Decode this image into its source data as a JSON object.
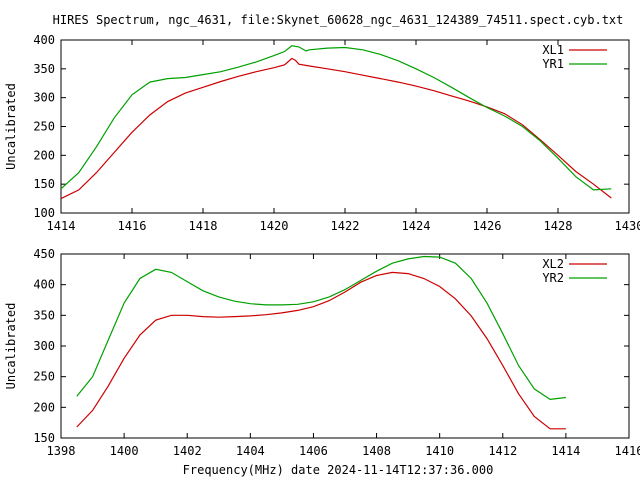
{
  "title": "HIRES Spectrum, ngc_4631, file:Skynet_60628_ngc_4631_124389_74511.spect.cyb.txt",
  "xlabel": "Frequency(MHz) date 2024-11-14T12:37:36.000",
  "colors": {
    "red": "#cc0000",
    "green": "#00a000"
  },
  "chart_data": [
    {
      "type": "line",
      "ylabel": "Uncalibrated",
      "xlim": [
        1414,
        1430
      ],
      "ylim": [
        100,
        400
      ],
      "xticks": [
        "1414",
        "1416",
        "1418",
        "1420",
        "1422",
        "1424",
        "1426",
        "1428",
        "1430"
      ],
      "yticks": [
        "100",
        "150",
        "200",
        "250",
        "300",
        "350",
        "400"
      ],
      "legend": "top-right",
      "series": [
        {
          "name": "XL1",
          "color": "#cc0000",
          "x": [
            1414.0,
            1414.5,
            1415.0,
            1415.5,
            1416.0,
            1416.5,
            1417.0,
            1417.5,
            1418.0,
            1418.5,
            1419.0,
            1419.5,
            1420.0,
            1420.3,
            1420.5,
            1420.6,
            1420.7,
            1421.0,
            1421.5,
            1422.0,
            1422.5,
            1423.0,
            1423.5,
            1424.0,
            1424.5,
            1425.0,
            1425.5,
            1426.0,
            1426.5,
            1427.0,
            1427.5,
            1428.0,
            1428.5,
            1429.0,
            1429.5
          ],
          "y": [
            125,
            140,
            170,
            205,
            240,
            270,
            293,
            308,
            318,
            328,
            337,
            345,
            352,
            357,
            368,
            365,
            358,
            355,
            350,
            345,
            339,
            333,
            327,
            320,
            312,
            303,
            294,
            284,
            272,
            253,
            227,
            200,
            172,
            150,
            126
          ]
        },
        {
          "name": "YR1",
          "color": "#00a000",
          "x": [
            1414.0,
            1414.5,
            1415.0,
            1415.5,
            1416.0,
            1416.5,
            1417.0,
            1417.5,
            1418.0,
            1418.5,
            1419.0,
            1419.5,
            1420.0,
            1420.3,
            1420.5,
            1420.7,
            1420.9,
            1421.0,
            1421.5,
            1422.0,
            1422.5,
            1423.0,
            1423.5,
            1424.0,
            1424.5,
            1425.0,
            1425.5,
            1426.0,
            1426.5,
            1427.0,
            1427.5,
            1428.0,
            1428.5,
            1429.0,
            1429.5
          ],
          "y": [
            142,
            170,
            215,
            265,
            305,
            327,
            333,
            335,
            340,
            345,
            353,
            362,
            373,
            380,
            390,
            388,
            381,
            383,
            386,
            387,
            383,
            375,
            364,
            350,
            335,
            318,
            300,
            283,
            268,
            250,
            225,
            195,
            163,
            140,
            142
          ]
        }
      ]
    },
    {
      "type": "line",
      "ylabel": "Uncalibrated",
      "xlim": [
        1398,
        1416
      ],
      "ylim": [
        150,
        450
      ],
      "xticks": [
        "1398",
        "1400",
        "1402",
        "1404",
        "1406",
        "1408",
        "1410",
        "1412",
        "1414",
        "1416"
      ],
      "yticks": [
        "150",
        "200",
        "250",
        "300",
        "350",
        "400",
        "450"
      ],
      "legend": "top-right",
      "series": [
        {
          "name": "XL2",
          "color": "#cc0000",
          "x": [
            1398.5,
            1399.0,
            1399.5,
            1400.0,
            1400.5,
            1401.0,
            1401.5,
            1402.0,
            1402.5,
            1403.0,
            1403.5,
            1404.0,
            1404.5,
            1405.0,
            1405.5,
            1406.0,
            1406.3,
            1406.5,
            1407.0,
            1407.5,
            1408.0,
            1408.5,
            1409.0,
            1409.5,
            1410.0,
            1410.5,
            1411.0,
            1411.5,
            1412.0,
            1412.5,
            1413.0,
            1413.5,
            1414.0
          ],
          "y": [
            168,
            195,
            235,
            280,
            318,
            342,
            350,
            350,
            348,
            347,
            348,
            349,
            351,
            354,
            358,
            364,
            370,
            374,
            388,
            404,
            415,
            420,
            418,
            410,
            397,
            377,
            349,
            312,
            268,
            222,
            185,
            165,
            165
          ]
        },
        {
          "name": "YR2",
          "color": "#00a000",
          "x": [
            1398.5,
            1399.0,
            1399.5,
            1400.0,
            1400.5,
            1401.0,
            1401.5,
            1402.0,
            1402.5,
            1403.0,
            1403.5,
            1404.0,
            1404.5,
            1405.0,
            1405.5,
            1406.0,
            1406.5,
            1407.0,
            1407.5,
            1408.0,
            1408.5,
            1409.0,
            1409.5,
            1410.0,
            1410.5,
            1411.0,
            1411.5,
            1412.0,
            1412.5,
            1413.0,
            1413.5,
            1414.0
          ],
          "y": [
            218,
            250,
            310,
            370,
            410,
            425,
            420,
            405,
            390,
            380,
            373,
            369,
            367,
            367,
            368,
            372,
            380,
            392,
            407,
            422,
            435,
            442,
            446,
            445,
            435,
            410,
            370,
            320,
            268,
            230,
            213,
            216
          ]
        }
      ]
    }
  ]
}
